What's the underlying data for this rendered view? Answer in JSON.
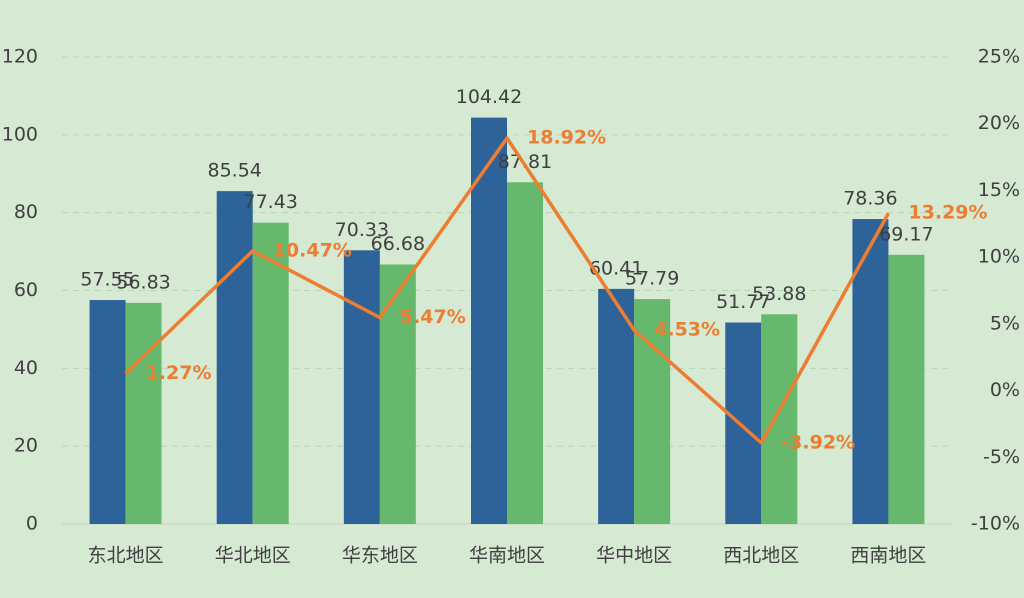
{
  "chart_data": {
    "type": "bar",
    "categories": [
      "东北地区",
      "华北地区",
      "华东地区",
      "华南地区",
      "华中地区",
      "西北地区",
      "西南地区"
    ],
    "series": [
      {
        "color": "#2e6399",
        "values": [
          57.55,
          85.54,
          70.33,
          104.42,
          60.41,
          51.77,
          78.36
        ]
      },
      {
        "color": "#66b96c",
        "values": [
          56.83,
          77.43,
          66.68,
          87.81,
          57.79,
          53.88,
          69.17
        ]
      },
      {
        "type": "line",
        "axis": "y2",
        "color": "#ed7d31",
        "values": [
          1.27,
          10.47,
          5.47,
          18.92,
          4.53,
          -3.92,
          13.29
        ],
        "value_labels": [
          "1.27%",
          "10.47%",
          "5.47%",
          "18.92%",
          "4.53%",
          "-3.92%",
          "13.29%"
        ]
      }
    ],
    "ylim": [
      0,
      120
    ],
    "yticks": [
      0,
      20,
      40,
      60,
      80,
      100,
      120
    ],
    "y2lim": [
      -10,
      25
    ],
    "y2ticks": [
      {
        "value": -10,
        "label": "-10%"
      },
      {
        "value": -5,
        "label": "-5%"
      },
      {
        "value": 0,
        "label": "0%"
      },
      {
        "value": 5,
        "label": "5%"
      },
      {
        "value": 10,
        "label": "10%"
      },
      {
        "value": 15,
        "label": "15%"
      },
      {
        "value": 20,
        "label": "20%"
      },
      {
        "value": 25,
        "label": "25%"
      }
    ],
    "grid": true
  }
}
